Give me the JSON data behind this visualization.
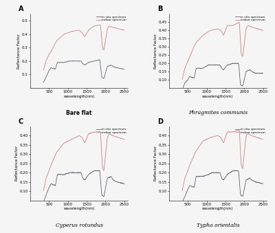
{
  "panels": [
    {
      "label": "A",
      "title": "Bare flat",
      "title_style": "normal",
      "ylim": [
        0,
        0.55
      ],
      "yticks": [
        0.1,
        0.2,
        0.3,
        0.4,
        0.5
      ],
      "ylabel": "Reflectance Factor",
      "in_situ_xknots": [
        350,
        420,
        500,
        550,
        670,
        720,
        900,
        1050,
        1150,
        1350,
        1400,
        1450,
        1550,
        1700,
        1850,
        1900,
        1960,
        2050,
        2150,
        2200,
        2300,
        2500
      ],
      "in_situ_yknots": [
        0.04,
        0.08,
        0.13,
        0.15,
        0.14,
        0.19,
        0.19,
        0.2,
        0.2,
        0.2,
        0.18,
        0.17,
        0.19,
        0.2,
        0.21,
        0.08,
        0.07,
        0.16,
        0.17,
        0.16,
        0.15,
        0.14
      ],
      "indoor_xknots": [
        350,
        420,
        480,
        550,
        700,
        900,
        1100,
        1300,
        1380,
        1450,
        1550,
        1700,
        1870,
        1920,
        1960,
        2050,
        2100,
        2200,
        2350,
        2500
      ],
      "indoor_yknots": [
        0.13,
        0.2,
        0.24,
        0.27,
        0.35,
        0.4,
        0.42,
        0.43,
        0.41,
        0.38,
        0.43,
        0.46,
        0.47,
        0.3,
        0.28,
        0.44,
        0.46,
        0.45,
        0.44,
        0.43
      ]
    },
    {
      "label": "B",
      "title": "Phragmites communis",
      "title_style": "italic",
      "ylim": [
        0.05,
        0.5
      ],
      "yticks": [
        0.1,
        0.15,
        0.2,
        0.25,
        0.3,
        0.35,
        0.4,
        0.45
      ],
      "ylabel": "Reflectance Factor",
      "in_situ_xknots": [
        350,
        420,
        500,
        550,
        670,
        720,
        900,
        1050,
        1150,
        1350,
        1400,
        1450,
        1550,
        1700,
        1850,
        1900,
        1960,
        2050,
        2150,
        2200,
        2300,
        2500
      ],
      "in_situ_yknots": [
        0.04,
        0.08,
        0.1,
        0.12,
        0.11,
        0.17,
        0.17,
        0.19,
        0.19,
        0.19,
        0.17,
        0.16,
        0.19,
        0.2,
        0.2,
        0.07,
        0.06,
        0.15,
        0.16,
        0.15,
        0.14,
        0.14
      ],
      "indoor_xknots": [
        350,
        420,
        480,
        550,
        700,
        900,
        1100,
        1300,
        1380,
        1450,
        1550,
        1700,
        1870,
        1920,
        1960,
        2050,
        2100,
        2200,
        2350,
        2500
      ],
      "indoor_yknots": [
        0.1,
        0.17,
        0.2,
        0.24,
        0.32,
        0.37,
        0.4,
        0.41,
        0.4,
        0.37,
        0.43,
        0.43,
        0.45,
        0.26,
        0.24,
        0.41,
        0.43,
        0.42,
        0.41,
        0.4
      ]
    },
    {
      "label": "C",
      "title": "Cyperus rotundus",
      "title_style": "italic",
      "ylim": [
        0.05,
        0.45
      ],
      "yticks": [
        0.1,
        0.15,
        0.2,
        0.25,
        0.3,
        0.35,
        0.4
      ],
      "ylabel": "Reflectance Factor",
      "in_situ_xknots": [
        350,
        420,
        500,
        550,
        670,
        720,
        900,
        1050,
        1150,
        1350,
        1400,
        1450,
        1550,
        1700,
        1850,
        1900,
        1960,
        2050,
        2150,
        2200,
        2300,
        2500
      ],
      "in_situ_yknots": [
        0.04,
        0.08,
        0.12,
        0.14,
        0.13,
        0.19,
        0.19,
        0.2,
        0.2,
        0.2,
        0.17,
        0.16,
        0.19,
        0.21,
        0.21,
        0.08,
        0.07,
        0.17,
        0.18,
        0.16,
        0.15,
        0.14
      ],
      "indoor_xknots": [
        350,
        420,
        480,
        550,
        700,
        900,
        1100,
        1300,
        1380,
        1450,
        1550,
        1700,
        1870,
        1920,
        1960,
        2050,
        2100,
        2200,
        2350,
        2500
      ],
      "indoor_yknots": [
        0.1,
        0.17,
        0.2,
        0.24,
        0.31,
        0.36,
        0.38,
        0.4,
        0.39,
        0.36,
        0.41,
        0.42,
        0.42,
        0.23,
        0.21,
        0.39,
        0.41,
        0.4,
        0.39,
        0.38
      ]
    },
    {
      "label": "D",
      "title": "Typha orientalis",
      "title_style": "italic",
      "ylim": [
        0.05,
        0.45
      ],
      "yticks": [
        0.1,
        0.15,
        0.2,
        0.25,
        0.3,
        0.35,
        0.4
      ],
      "ylabel": "Reflectance Factor",
      "in_situ_xknots": [
        350,
        420,
        500,
        550,
        670,
        720,
        900,
        1050,
        1150,
        1350,
        1400,
        1450,
        1550,
        1700,
        1850,
        1900,
        1960,
        2050,
        2150,
        2200,
        2300,
        2500
      ],
      "in_situ_yknots": [
        0.04,
        0.07,
        0.11,
        0.13,
        0.12,
        0.18,
        0.18,
        0.19,
        0.2,
        0.2,
        0.17,
        0.16,
        0.19,
        0.21,
        0.21,
        0.08,
        0.07,
        0.16,
        0.17,
        0.16,
        0.15,
        0.14
      ],
      "indoor_xknots": [
        350,
        420,
        480,
        550,
        700,
        900,
        1100,
        1300,
        1380,
        1450,
        1550,
        1700,
        1870,
        1920,
        1960,
        2050,
        2100,
        2200,
        2350,
        2500
      ],
      "indoor_yknots": [
        0.1,
        0.17,
        0.2,
        0.24,
        0.31,
        0.37,
        0.39,
        0.4,
        0.39,
        0.36,
        0.42,
        0.42,
        0.43,
        0.24,
        0.22,
        0.4,
        0.41,
        0.4,
        0.39,
        0.38
      ]
    }
  ],
  "xlim": [
    0,
    2600
  ],
  "xticks": [
    500,
    1000,
    1500,
    2000,
    2500
  ],
  "xlabel": "wavelength(nm)",
  "in_situ_color": "#555566",
  "indoor_color": "#c87878",
  "legend_labels": [
    "in situ spectrum",
    "indoor spectrum"
  ],
  "background_color": "#f5f5f5"
}
